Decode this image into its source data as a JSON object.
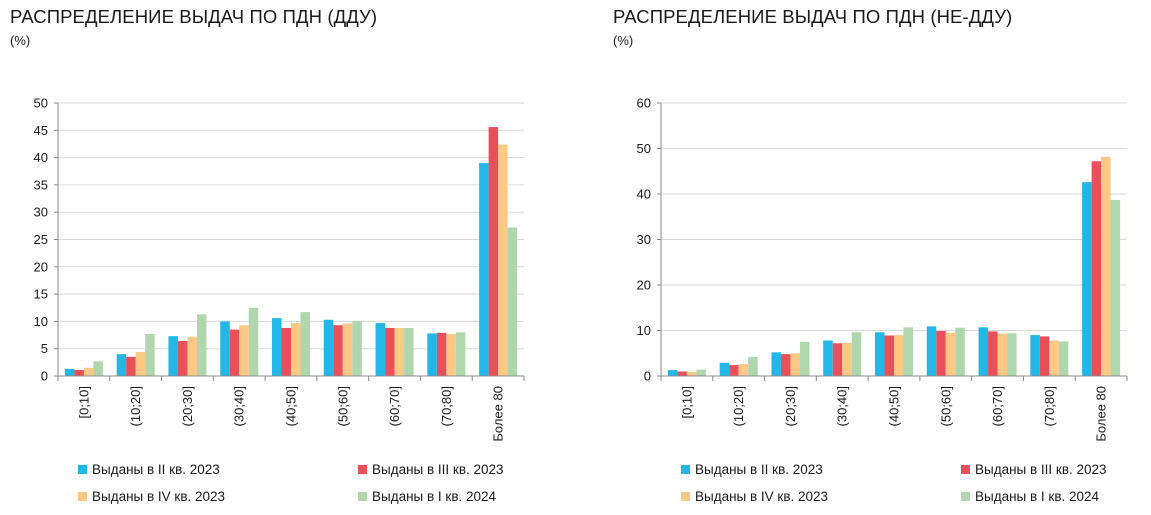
{
  "colors": {
    "series": [
      "#21b8e7",
      "#e9505a",
      "#fbc886",
      "#b0d6ad"
    ],
    "axis": "#888888",
    "grid": "#d9d9d9"
  },
  "chart_data": [
    {
      "type": "bar",
      "title": "РАСПРЕДЕЛЕНИЕ ВЫДАЧ ПО ПДН (ДДУ)",
      "unit": "(%)",
      "categories": [
        "[0;10]",
        "(10;20]",
        "(20;30]",
        "(30;40]",
        "(40;50]",
        "(50;60]",
        "(60;70]",
        "(70;80]",
        "Более 80"
      ],
      "ylim": [
        0,
        50
      ],
      "yticks": [
        0,
        5,
        10,
        15,
        20,
        25,
        30,
        35,
        40,
        45,
        50
      ],
      "grid": true,
      "legend_position": "bottom",
      "series": [
        {
          "name": "Выданы в II кв. 2023",
          "values": [
            1.3,
            4.0,
            7.3,
            10.0,
            10.6,
            10.3,
            9.7,
            7.8,
            39.0
          ]
        },
        {
          "name": "Выданы в III кв. 2023",
          "values": [
            1.1,
            3.5,
            6.4,
            8.5,
            8.8,
            9.3,
            8.8,
            7.9,
            45.6
          ]
        },
        {
          "name": "Выданы в IV кв. 2023",
          "values": [
            1.5,
            4.4,
            7.2,
            9.3,
            9.7,
            9.6,
            8.8,
            7.7,
            42.4
          ]
        },
        {
          "name": "Выданы в I кв. 2024",
          "values": [
            2.7,
            7.7,
            11.3,
            12.5,
            11.7,
            10.1,
            8.8,
            8.0,
            27.2
          ]
        }
      ]
    },
    {
      "type": "bar",
      "title": "РАСПРЕДЕЛЕНИЕ ВЫДАЧ ПО ПДН (НЕ-ДДУ)",
      "unit": "(%)",
      "categories": [
        "[0;10]",
        "(10;20]",
        "(20;30]",
        "(30;40]",
        "(40;50]",
        "(50;60]",
        "(60;70]",
        "(70;80]",
        "Более 80"
      ],
      "ylim": [
        0,
        60
      ],
      "yticks": [
        0,
        10,
        20,
        30,
        40,
        50,
        60
      ],
      "grid": true,
      "legend_position": "bottom",
      "series": [
        {
          "name": "Выданы в II кв. 2023",
          "values": [
            1.3,
            2.9,
            5.2,
            7.8,
            9.6,
            10.9,
            10.7,
            9.0,
            42.6
          ]
        },
        {
          "name": "Выданы в III кв. 2023",
          "values": [
            1.0,
            2.4,
            4.8,
            7.2,
            8.9,
            9.9,
            9.8,
            8.7,
            47.2
          ]
        },
        {
          "name": "Выданы в IV кв. 2023",
          "values": [
            0.9,
            2.6,
            5.0,
            7.3,
            9.0,
            9.5,
            9.3,
            7.8,
            48.2
          ]
        },
        {
          "name": "Выданы в I кв. 2024",
          "values": [
            1.4,
            4.2,
            7.5,
            9.6,
            10.7,
            10.6,
            9.4,
            7.6,
            38.7
          ]
        }
      ]
    }
  ]
}
